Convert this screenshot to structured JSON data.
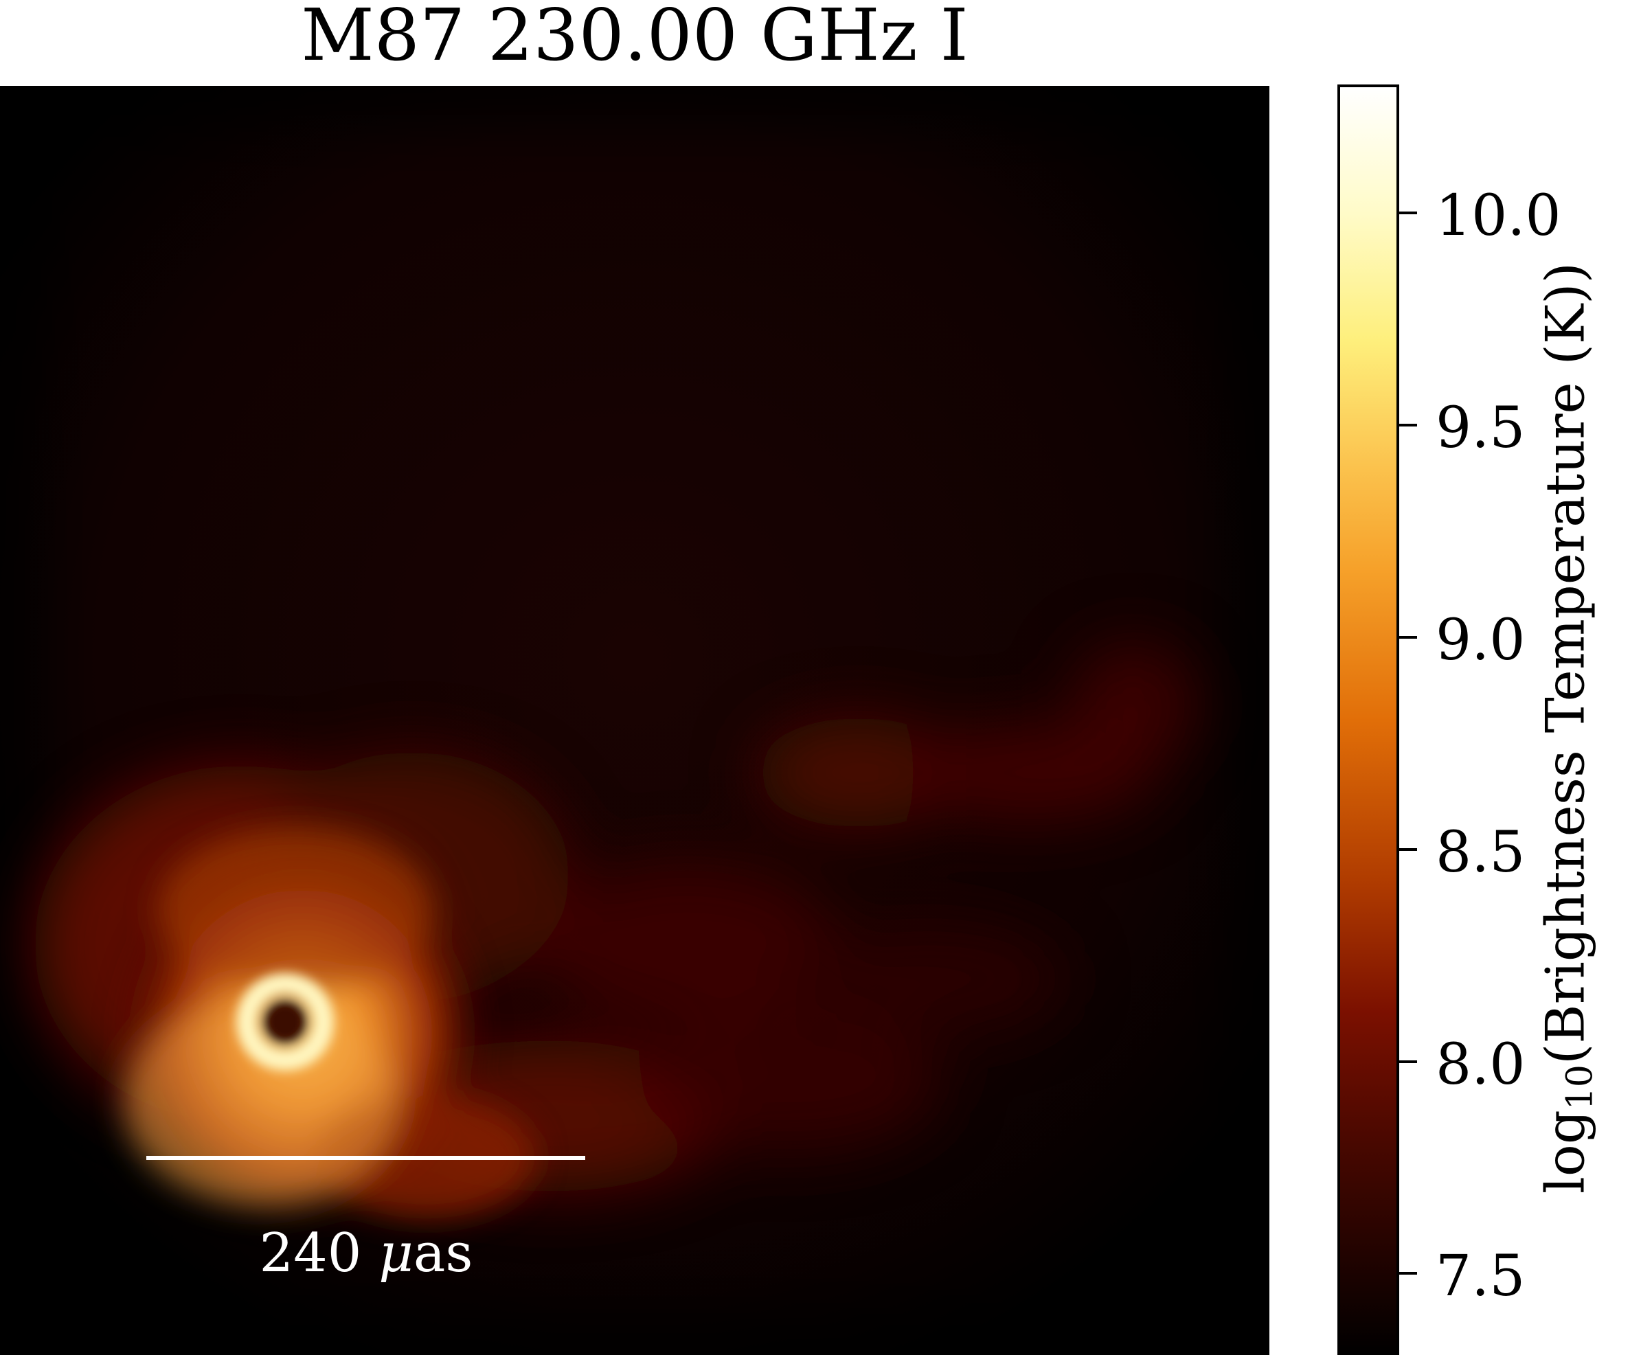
{
  "title": "M87 230.00 GHz I",
  "scalebar": {
    "value": "240",
    "unit_symbol": "μ",
    "unit_rest": "as"
  },
  "colorbar": {
    "label_prefix": "log",
    "label_subscript": "10",
    "label_rest": "(Brightness Temperature (K))",
    "ticks": [
      {
        "label": "10.0",
        "value": 10.0
      },
      {
        "label": "9.5",
        "value": 9.5
      },
      {
        "label": "9.0",
        "value": 9.0
      },
      {
        "label": "8.5",
        "value": 8.5
      },
      {
        "label": "8.0",
        "value": 8.0
      },
      {
        "label": "7.5",
        "value": 7.5
      }
    ]
  },
  "colors": {
    "background": "#000000",
    "ring": "#fff6c0",
    "glow": "#f59a2a",
    "jet": "#5a0a00",
    "scalebar": "#ffffff"
  }
}
